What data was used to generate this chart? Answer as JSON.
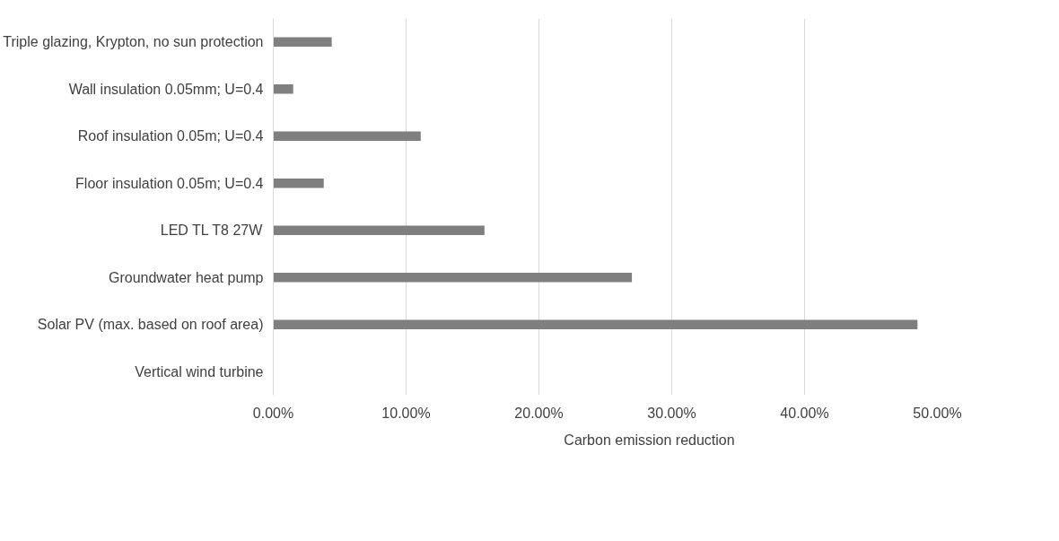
{
  "chart_data": {
    "type": "bar",
    "orientation": "horizontal",
    "categories": [
      "Triple glazing, Krypton, no sun protection",
      "Wall insulation 0.05mm; U=0.4",
      "Roof insulation 0.05m; U=0.4",
      "Floor insulation 0.05m; U=0.4",
      "LED TL T8 27W",
      "Groundwater heat pump",
      "Solar PV (max. based on roof area)",
      "Vertical wind turbine"
    ],
    "series": [
      {
        "name": "Carbon emission reduction",
        "color": "#7f7f7f",
        "values": [
          4.4,
          1.5,
          11.1,
          3.8,
          15.9,
          27.0,
          48.5,
          0
        ]
      }
    ],
    "xlim": [
      0,
      50
    ],
    "xticks": [
      {
        "value": 0,
        "label": "0.00%"
      },
      {
        "value": 10,
        "label": "10.00%"
      },
      {
        "value": 20,
        "label": "20.00%"
      },
      {
        "value": 30,
        "label": "30.00%"
      },
      {
        "value": 40,
        "label": "40.00%"
      },
      {
        "value": 50,
        "label": "50.00%"
      }
    ],
    "grid": "x",
    "legend": "bottom"
  }
}
